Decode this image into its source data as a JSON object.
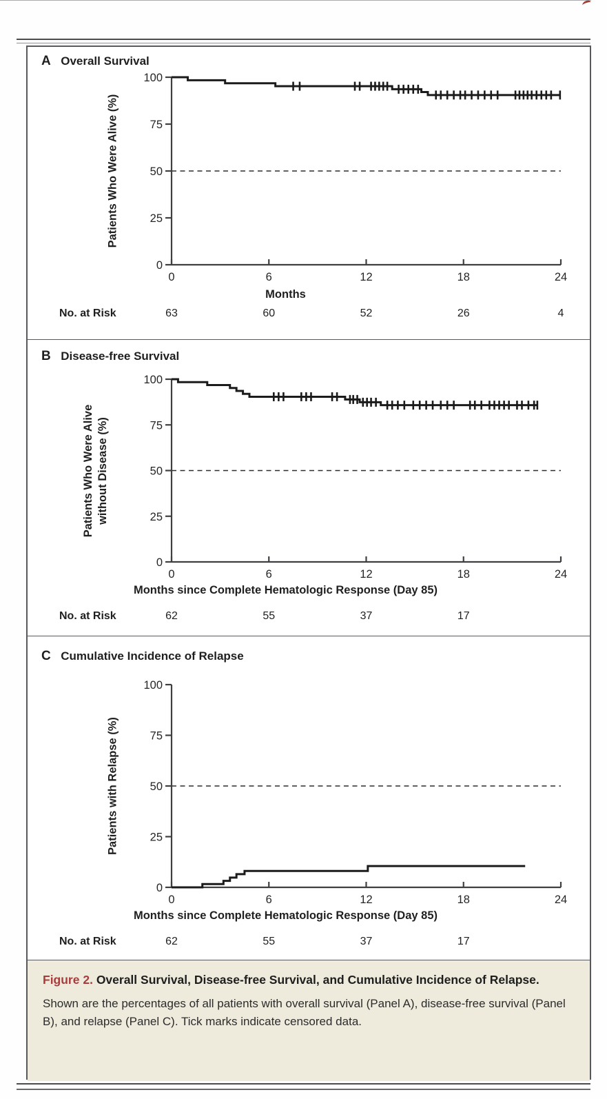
{
  "accent_colors": {
    "figure_label_red": "#a93b3c",
    "caption_background": "#efebdc"
  },
  "caption": {
    "figure_label": "Figure 2.",
    "title": "Overall Survival, Disease-free Survival, and Cumulative Incidence of Relapse.",
    "body": "Shown are the percentages of all patients with overall survival (Panel A), disease-free survival (Panel B), and relapse (Panel C). Tick marks indicate censored data."
  },
  "chart_data": [
    {
      "type": "line",
      "panel_label": "A",
      "title": "Overall Survival",
      "ylabel_lines": [
        "Patients Who Were Alive (%)"
      ],
      "xlabel": "Months",
      "xlim": [
        0,
        24
      ],
      "ylim": [
        0,
        100
      ],
      "xticks": [
        "0",
        "6",
        "12",
        "18",
        "24"
      ],
      "yticks": [
        "0",
        "25",
        "50",
        "75",
        "100"
      ],
      "grid": false,
      "legend": null,
      "dashed_reference_y": 50,
      "start_value": 100,
      "steps": [
        [
          1.0,
          98.4
        ],
        [
          3.3,
          96.8
        ],
        [
          6.4,
          95.2
        ],
        [
          13.6,
          93.6
        ],
        [
          15.4,
          92.1
        ],
        [
          15.8,
          90.5
        ]
      ],
      "end_x": 24,
      "censor_marks": [
        7.5,
        7.9,
        11.3,
        11.6,
        12.3,
        12.55,
        12.8,
        13.05,
        13.3,
        14.0,
        14.3,
        14.6,
        14.9,
        15.2,
        16.3,
        16.6,
        17.0,
        17.4,
        17.8,
        18.1,
        18.5,
        18.9,
        19.3,
        19.7,
        20.1,
        21.2,
        21.45,
        21.7,
        21.95,
        22.2,
        22.5,
        22.8,
        23.1,
        23.4,
        23.95
      ],
      "no_at_risk": {
        "label": "No. at Risk",
        "months": [
          0,
          6,
          12,
          18,
          24
        ],
        "values": [
          "63",
          "60",
          "52",
          "26",
          "4"
        ]
      }
    },
    {
      "type": "line",
      "panel_label": "B",
      "title": "Disease-free Survival",
      "ylabel_lines": [
        "Patients Who Were Alive",
        "without Disease (%)"
      ],
      "xlabel": "Months since Complete Hematologic Response (Day 85)",
      "xlim": [
        0,
        24
      ],
      "ylim": [
        0,
        100
      ],
      "xticks": [
        "0",
        "6",
        "12",
        "18",
        "24"
      ],
      "yticks": [
        "0",
        "25",
        "50",
        "75",
        "100"
      ],
      "grid": false,
      "legend": null,
      "dashed_reference_y": 50,
      "start_value": 100,
      "steps": [
        [
          0.4,
          98.4
        ],
        [
          2.2,
          96.8
        ],
        [
          3.6,
          95.2
        ],
        [
          4.0,
          93.6
        ],
        [
          4.4,
          92.0
        ],
        [
          4.8,
          90.4
        ],
        [
          10.7,
          88.9
        ],
        [
          11.6,
          87.4
        ],
        [
          12.9,
          85.8
        ]
      ],
      "end_x": 22.6,
      "censor_marks": [
        6.3,
        6.6,
        6.9,
        8.0,
        8.3,
        8.6,
        9.9,
        10.2,
        11.0,
        11.2,
        11.45,
        11.8,
        12.05,
        12.3,
        12.6,
        13.3,
        13.6,
        13.95,
        14.35,
        14.9,
        15.3,
        15.7,
        16.1,
        16.6,
        17.0,
        17.4,
        18.4,
        18.7,
        19.1,
        19.6,
        19.9,
        20.2,
        20.5,
        20.8,
        21.3,
        21.6,
        22.0,
        22.35,
        22.55
      ],
      "no_at_risk": {
        "label": "No. at Risk",
        "months": [
          0,
          6,
          12,
          18
        ],
        "values": [
          "62",
          "55",
          "37",
          "17"
        ]
      }
    },
    {
      "type": "line",
      "panel_label": "C",
      "title": "Cumulative Incidence of Relapse",
      "ylabel_lines": [
        "Patients with Relapse (%)"
      ],
      "xlabel": "Months since Complete Hematologic Response (Day 85)",
      "xlim": [
        0,
        24
      ],
      "ylim": [
        0,
        100
      ],
      "xticks": [
        "0",
        "6",
        "12",
        "18",
        "24"
      ],
      "yticks": [
        "0",
        "25",
        "50",
        "75",
        "100"
      ],
      "grid": false,
      "legend": null,
      "dashed_reference_y": 50,
      "start_value": 0,
      "steps": [
        [
          1.9,
          1.6
        ],
        [
          3.2,
          3.2
        ],
        [
          3.6,
          4.8
        ],
        [
          4.0,
          6.5
        ],
        [
          4.5,
          8.1
        ],
        [
          12.1,
          10.5
        ]
      ],
      "end_x": 21.8,
      "censor_marks": [],
      "no_at_risk": {
        "label": "No. at Risk",
        "months": [
          0,
          6,
          12,
          18
        ],
        "values": [
          "62",
          "55",
          "37",
          "17"
        ]
      }
    }
  ]
}
